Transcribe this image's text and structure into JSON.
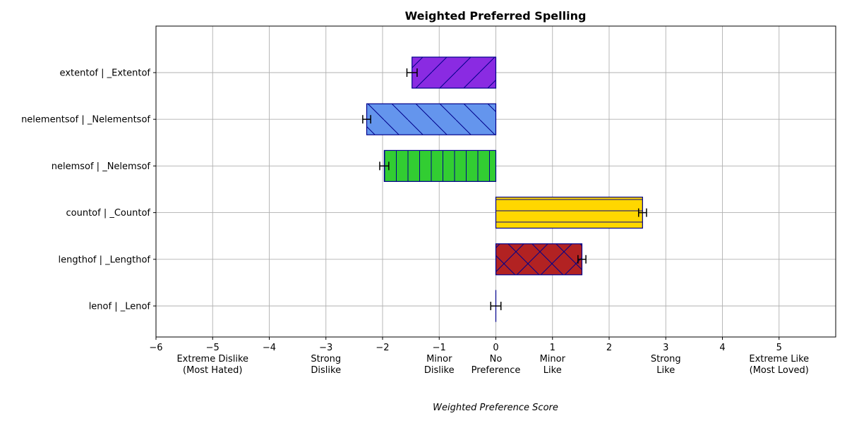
{
  "chart_data": {
    "type": "bar",
    "orientation": "horizontal",
    "title": "Weighted Preferred Spelling",
    "xlabel": "Weighted Preference Score",
    "ylabel": "",
    "xlim": [
      -6,
      6
    ],
    "xticks": [
      -6,
      -5,
      -4,
      -3,
      -2,
      -1,
      0,
      1,
      2,
      3,
      4,
      5
    ],
    "grid": true,
    "categories": [
      "extentof | _Extentof",
      "nelementsof | _Nelementsof",
      "nelemsof | _Nelemsof",
      "countof | _Countof",
      "lengthof | _Lengthof",
      "lenof | _Lenof"
    ],
    "values": [
      -1.48,
      -2.28,
      -1.97,
      2.59,
      1.52,
      0.0
    ],
    "errors": [
      0.09,
      0.07,
      0.08,
      0.07,
      0.07,
      0.09
    ],
    "colors": [
      "#8a2be2",
      "#6495ed",
      "#32cd32",
      "#ffd700",
      "#b22222",
      "#ffffff"
    ],
    "edge_color": "#00008b",
    "hatches": [
      "/",
      "\\",
      "|",
      "-",
      "x",
      ""
    ],
    "tick_annotations": [
      {
        "x": -5,
        "lines": [
          "Extreme Dislike",
          "(Most Hated)"
        ]
      },
      {
        "x": -3,
        "lines": [
          "Strong",
          "Dislike"
        ]
      },
      {
        "x": -1,
        "lines": [
          "Minor",
          "Dislike"
        ]
      },
      {
        "x": 0,
        "lines": [
          "No",
          "Preference"
        ]
      },
      {
        "x": 1,
        "lines": [
          "Minor",
          "Like"
        ]
      },
      {
        "x": 3,
        "lines": [
          "Strong",
          "Like"
        ]
      },
      {
        "x": 5,
        "lines": [
          "Extreme Like",
          "(Most Loved)"
        ]
      }
    ]
  }
}
